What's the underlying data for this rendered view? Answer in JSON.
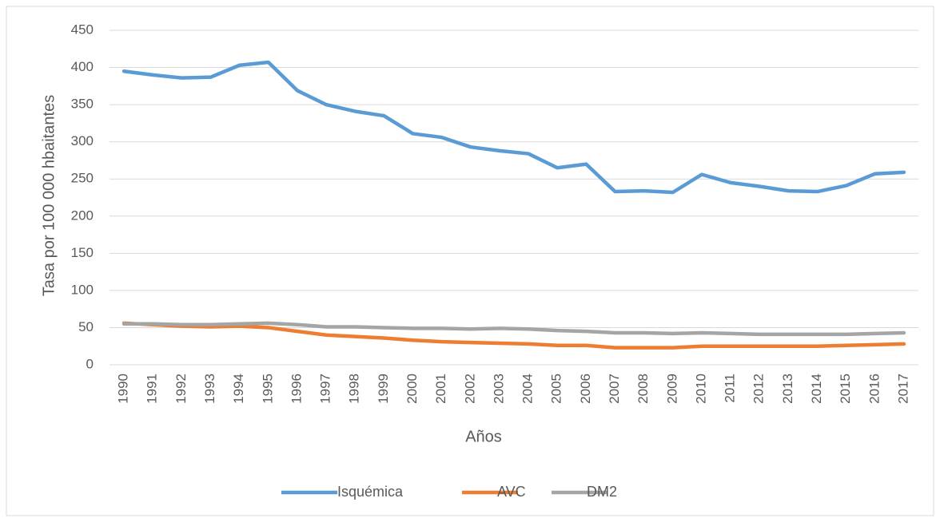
{
  "chart_data": {
    "type": "line",
    "x_label": "Años",
    "y_label": "Tasa por 100 000 hbaitantes",
    "x": [
      1990,
      1991,
      1992,
      1993,
      1994,
      1995,
      1996,
      1997,
      1998,
      1999,
      2000,
      2001,
      2002,
      2003,
      2004,
      2005,
      2006,
      2007,
      2008,
      2009,
      2010,
      2011,
      2012,
      2013,
      2014,
      2015,
      2016,
      2017
    ],
    "xlim": [
      1989.5,
      2017.5
    ],
    "series": [
      {
        "name": "Isquémica",
        "color": "#5b9bd5",
        "values": [
          395,
          390,
          386,
          387,
          403,
          407,
          369,
          350,
          341,
          335,
          311,
          306,
          293,
          288,
          284,
          265,
          270,
          233,
          234,
          232,
          256,
          245,
          240,
          234,
          233,
          241,
          257,
          259
        ]
      },
      {
        "name": "AVC",
        "color": "#ed7d31",
        "values": [
          56,
          54,
          52,
          51,
          52,
          50,
          45,
          40,
          38,
          36,
          33,
          31,
          30,
          29,
          28,
          26,
          26,
          23,
          23,
          23,
          25,
          25,
          25,
          25,
          25,
          26,
          27,
          28
        ]
      },
      {
        "name": "DM2",
        "color": "#a5a5a5",
        "values": [
          55,
          55,
          54,
          54,
          55,
          56,
          54,
          51,
          51,
          50,
          49,
          49,
          48,
          49,
          48,
          46,
          45,
          43,
          43,
          42,
          43,
          42,
          41,
          41,
          41,
          41,
          42,
          43
        ]
      }
    ],
    "ylim": [
      0,
      450
    ],
    "yticks": [
      0,
      50,
      100,
      150,
      200,
      250,
      300,
      350,
      400,
      450
    ],
    "grid": true,
    "legend": "bottom"
  }
}
